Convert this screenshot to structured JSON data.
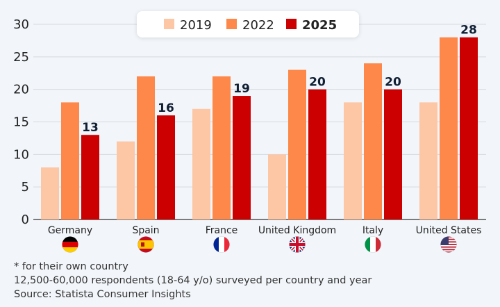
{
  "chart_data": {
    "type": "bar",
    "categories": [
      "Germany",
      "Spain",
      "France",
      "United Kingdom",
      "Italy",
      "United States"
    ],
    "series": [
      {
        "name": "2019",
        "color": "#fdc6a5",
        "values": [
          8,
          12,
          17,
          10,
          18,
          18
        ]
      },
      {
        "name": "2022",
        "color": "#fd884a",
        "values": [
          18,
          22,
          22,
          23,
          24,
          28
        ]
      },
      {
        "name": "2025",
        "color": "#cc0000",
        "values": [
          13,
          16,
          19,
          20,
          20,
          28
        ],
        "labeled": true,
        "bold_legend": true
      }
    ],
    "yticks": [
      0,
      5,
      10,
      15,
      20,
      25,
      30
    ],
    "ylim": [
      0,
      30
    ],
    "grid": true,
    "legend": "top-center",
    "flags": [
      "germany-flag",
      "spain-flag",
      "france-flag",
      "uk-flag",
      "italy-flag",
      "us-flag"
    ]
  },
  "footer": {
    "note": "* for their own country",
    "respondents": "12,500-60,000 respondents (18-64 y/o) surveyed per country and year",
    "source": "Source: Statista Consumer Insights"
  }
}
